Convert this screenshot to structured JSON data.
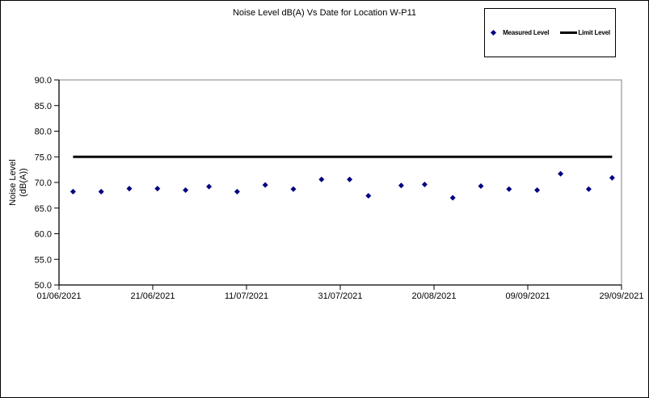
{
  "title": "Noise Level dB(A) Vs Date for Location W-P11",
  "legend": {
    "items": [
      {
        "label": "Measured Level",
        "marker": "diamond",
        "color": "#000080"
      },
      {
        "label": "Limit Level",
        "marker": "line",
        "color": "#000000"
      }
    ]
  },
  "y_axis": {
    "title_line1": "Noise Level",
    "title_line2": "(dB(A))"
  },
  "colors": {
    "marker": "#000080",
    "limit_line": "#000000",
    "axis": "#000000",
    "plot_border": "#808080",
    "text": "#000000",
    "background": "#ffffff"
  },
  "chart_data": {
    "type": "scatter",
    "title": "Noise Level dB(A) Vs Date for Location W-P11",
    "xlabel": "",
    "ylabel": "Noise Level (dB(A))",
    "ylim": [
      50.0,
      90.0
    ],
    "y_tick_step": 5.0,
    "y_tick_labels": [
      "90.0",
      "85.0",
      "80.0",
      "75.0",
      "70.0",
      "65.0",
      "60.0",
      "55.0",
      "50.0"
    ],
    "x_tick_labels": [
      "01/06/2021",
      "21/06/2021",
      "11/07/2021",
      "31/07/2021",
      "20/08/2021",
      "09/09/2021",
      "29/09/2021"
    ],
    "x_day_range": [
      0,
      120
    ],
    "x_tick_step_days": 20,
    "grid": false,
    "legend_position": "top-right",
    "series": [
      {
        "name": "Measured Level",
        "type": "scatter",
        "marker": "diamond",
        "color": "#000080",
        "points": [
          {
            "date": "04/06/2021",
            "day": 3,
            "value": 68.2
          },
          {
            "date": "10/06/2021",
            "day": 9,
            "value": 68.2
          },
          {
            "date": "16/06/2021",
            "day": 15,
            "value": 68.8
          },
          {
            "date": "22/06/2021",
            "day": 21,
            "value": 68.8
          },
          {
            "date": "28/06/2021",
            "day": 27,
            "value": 68.5
          },
          {
            "date": "03/07/2021",
            "day": 32,
            "value": 69.2
          },
          {
            "date": "09/07/2021",
            "day": 38,
            "value": 68.2
          },
          {
            "date": "15/07/2021",
            "day": 44,
            "value": 69.5
          },
          {
            "date": "21/07/2021",
            "day": 50,
            "value": 68.7
          },
          {
            "date": "27/07/2021",
            "day": 56,
            "value": 70.6
          },
          {
            "date": "02/08/2021",
            "day": 62,
            "value": 70.6
          },
          {
            "date": "06/08/2021",
            "day": 66,
            "value": 67.4
          },
          {
            "date": "13/08/2021",
            "day": 73,
            "value": 69.4
          },
          {
            "date": "18/08/2021",
            "day": 78,
            "value": 69.6
          },
          {
            "date": "24/08/2021",
            "day": 84,
            "value": 67.0
          },
          {
            "date": "30/08/2021",
            "day": 90,
            "value": 69.3
          },
          {
            "date": "05/09/2021",
            "day": 96,
            "value": 68.7
          },
          {
            "date": "11/09/2021",
            "day": 102,
            "value": 68.5
          },
          {
            "date": "16/09/2021",
            "day": 107,
            "value": 71.7
          },
          {
            "date": "22/09/2021",
            "day": 113,
            "value": 68.7
          },
          {
            "date": "27/09/2021",
            "day": 118,
            "value": 70.9
          }
        ]
      },
      {
        "name": "Limit Level",
        "type": "hline",
        "color": "#000000",
        "value": 75.0,
        "day_start": 3,
        "day_end": 118,
        "line_width": 3
      }
    ]
  }
}
